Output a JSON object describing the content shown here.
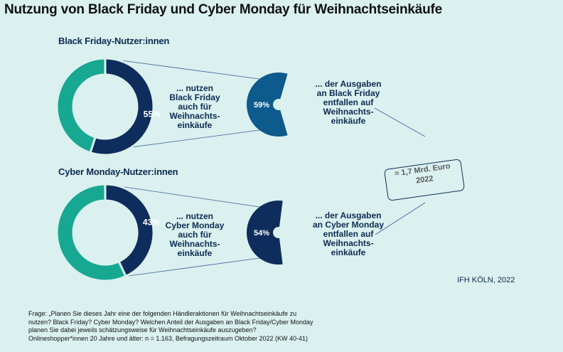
{
  "title": "Nutzung von Black Friday und Cyber Monday für Weihnachtseinkäufe",
  "source": "IFH KÖLN, 2022",
  "colors": {
    "teal": "#17a891",
    "navy": "#0e2d5c",
    "blue": "#0d5a8c",
    "background": "#daf1ef"
  },
  "chart_data": [
    {
      "type": "pie",
      "title": "Black Friday-Nutzer:innen",
      "slices": [
        {
          "label": "55%",
          "value": 55,
          "color": "#0e2d5c"
        },
        {
          "label": "",
          "value": 45,
          "color": "#17a891"
        }
      ],
      "description": "... nutzen\nBlack Friday\nauch für\nWeihnachts-\neinkäufe",
      "share": {
        "label": "59%",
        "value": 59,
        "color": "#0d5a8c"
      },
      "share_description": "... der Ausgaben\nan Black Friday\nentfallen auf\nWeihnachts-\neinkäufe"
    },
    {
      "type": "pie",
      "title": "Cyber Monday-Nutzer:innen",
      "slices": [
        {
          "label": "43%",
          "value": 43,
          "color": "#0e2d5c"
        },
        {
          "label": "",
          "value": 57,
          "color": "#17a891"
        }
      ],
      "description": "... nutzen\nCyber Monday\nauch für\nWeihnachts-\neinkäufe",
      "share": {
        "label": "54%",
        "value": 54,
        "color": "#0e2d5c"
      },
      "share_description": "... der Ausgaben\nan Cyber Monday\nentfallen auf\nWeihnachts-\neinkäufe"
    }
  ],
  "total_box": {
    "line1": "≈ 1,7 Mrd. Euro",
    "line2": "2022"
  },
  "footnote": [
    "Frage: „Planen Sie dieses Jahr eine der folgenden Händleraktionen  für Weihnachtseinkäufe zu",
    "nutzen?  Black Friday? Cyber Monday? Welchen Anteil der Ausgaben  an Black Friday/Cyber Monday",
    "planen Sie dabei jeweils schätzungsweise für Weihnachtseinkäufe auszugeben?",
    "Onlineshopper*innen 20 Jahre und älter: n = 1.163, Befragungszeitraum Oktober 2022 (KW 40-41)"
  ]
}
